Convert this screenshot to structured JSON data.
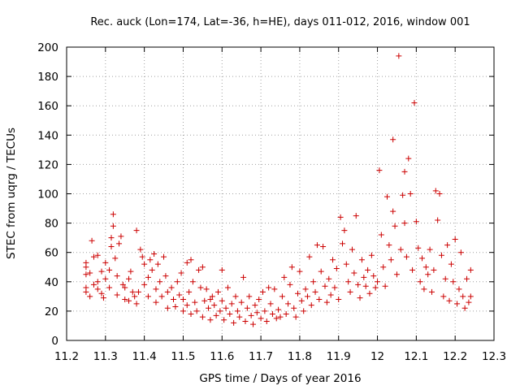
{
  "chart_data": {
    "type": "scatter",
    "title": "Rec. auck (Lon=174, Lat=-36, h=HE), days 011-012, 2016, window 001",
    "xlabel": "GPS time / Days of year 2016",
    "ylabel": "STEC from uqrg / TECUs",
    "xlim": [
      11.2,
      12.3
    ],
    "ylim": [
      0,
      200
    ],
    "xticks": [
      "11.2",
      "11.3",
      "11.4",
      "11.5",
      "11.6",
      "11.7",
      "11.8",
      "11.9",
      "12",
      "12.1",
      "12.2",
      "12.3"
    ],
    "yticks": [
      "0",
      "20",
      "40",
      "60",
      "80",
      "100",
      "120",
      "140",
      "160",
      "180",
      "200"
    ],
    "grid": true,
    "legend": "none",
    "marker": "+",
    "color": "#cc0000",
    "series": [
      {
        "points": [
          [
            11.25,
            33
          ],
          [
            11.25,
            36
          ],
          [
            11.25,
            45
          ],
          [
            11.25,
            50
          ],
          [
            11.25,
            53
          ],
          [
            11.26,
            30
          ],
          [
            11.26,
            46
          ],
          [
            11.265,
            68
          ],
          [
            11.27,
            57
          ],
          [
            11.27,
            38
          ],
          [
            11.28,
            35
          ],
          [
            11.28,
            40
          ],
          [
            11.28,
            58
          ],
          [
            11.29,
            32
          ],
          [
            11.29,
            47
          ],
          [
            11.295,
            29
          ],
          [
            11.3,
            53
          ],
          [
            11.3,
            42
          ],
          [
            11.31,
            36
          ],
          [
            11.31,
            48
          ],
          [
            11.315,
            64
          ],
          [
            11.315,
            70
          ],
          [
            11.32,
            78
          ],
          [
            11.32,
            86
          ],
          [
            11.325,
            56
          ],
          [
            11.33,
            31
          ],
          [
            11.33,
            44
          ],
          [
            11.335,
            66
          ],
          [
            11.34,
            71
          ],
          [
            11.345,
            38
          ],
          [
            11.35,
            28
          ],
          [
            11.35,
            36
          ],
          [
            11.36,
            27
          ],
          [
            11.36,
            42
          ],
          [
            11.365,
            47
          ],
          [
            11.37,
            33
          ],
          [
            11.375,
            30
          ],
          [
            11.38,
            75
          ],
          [
            11.38,
            25
          ],
          [
            11.385,
            33
          ],
          [
            11.39,
            62
          ],
          [
            11.395,
            57
          ],
          [
            11.4,
            52
          ],
          [
            11.4,
            38
          ],
          [
            11.41,
            30
          ],
          [
            11.41,
            43
          ],
          [
            11.415,
            55
          ],
          [
            11.42,
            48
          ],
          [
            11.425,
            59
          ],
          [
            11.43,
            35
          ],
          [
            11.43,
            26
          ],
          [
            11.435,
            52
          ],
          [
            11.44,
            40
          ],
          [
            11.445,
            30
          ],
          [
            11.45,
            57
          ],
          [
            11.455,
            44
          ],
          [
            11.46,
            22
          ],
          [
            11.46,
            33
          ],
          [
            11.47,
            36
          ],
          [
            11.475,
            28
          ],
          [
            11.48,
            23
          ],
          [
            11.485,
            40
          ],
          [
            11.49,
            31
          ],
          [
            11.495,
            46
          ],
          [
            11.5,
            20
          ],
          [
            11.5,
            28
          ],
          [
            11.51,
            53
          ],
          [
            11.51,
            24
          ],
          [
            11.515,
            33
          ],
          [
            11.52,
            55
          ],
          [
            11.52,
            18
          ],
          [
            11.525,
            40
          ],
          [
            11.53,
            26
          ],
          [
            11.535,
            20
          ],
          [
            11.54,
            48
          ],
          [
            11.545,
            36
          ],
          [
            11.55,
            50
          ],
          [
            11.55,
            16
          ],
          [
            11.555,
            27
          ],
          [
            11.56,
            35
          ],
          [
            11.565,
            22
          ],
          [
            11.57,
            28
          ],
          [
            11.57,
            14
          ],
          [
            11.575,
            30
          ],
          [
            11.58,
            24
          ],
          [
            11.585,
            17
          ],
          [
            11.59,
            33
          ],
          [
            11.595,
            20
          ],
          [
            11.6,
            27
          ],
          [
            11.6,
            48
          ],
          [
            11.605,
            14
          ],
          [
            11.61,
            22
          ],
          [
            11.615,
            36
          ],
          [
            11.62,
            18
          ],
          [
            11.625,
            25
          ],
          [
            11.63,
            12
          ],
          [
            11.635,
            30
          ],
          [
            11.64,
            20
          ],
          [
            11.645,
            16
          ],
          [
            11.65,
            26
          ],
          [
            11.655,
            43
          ],
          [
            11.66,
            13
          ],
          [
            11.665,
            22
          ],
          [
            11.67,
            30
          ],
          [
            11.675,
            17
          ],
          [
            11.68,
            11
          ],
          [
            11.685,
            24
          ],
          [
            11.69,
            19
          ],
          [
            11.695,
            28
          ],
          [
            11.7,
            15
          ],
          [
            11.705,
            33
          ],
          [
            11.71,
            20
          ],
          [
            11.715,
            13
          ],
          [
            11.72,
            36
          ],
          [
            11.725,
            25
          ],
          [
            11.73,
            18
          ],
          [
            11.735,
            35
          ],
          [
            11.74,
            15
          ],
          [
            11.745,
            21
          ],
          [
            11.75,
            16
          ],
          [
            11.755,
            30
          ],
          [
            11.76,
            43
          ],
          [
            11.765,
            18
          ],
          [
            11.77,
            25
          ],
          [
            11.775,
            38
          ],
          [
            11.78,
            50
          ],
          [
            11.785,
            22
          ],
          [
            11.79,
            16
          ],
          [
            11.795,
            32
          ],
          [
            11.8,
            47
          ],
          [
            11.805,
            27
          ],
          [
            11.81,
            20
          ],
          [
            11.815,
            35
          ],
          [
            11.82,
            30
          ],
          [
            11.825,
            57
          ],
          [
            11.83,
            24
          ],
          [
            11.835,
            40
          ],
          [
            11.84,
            33
          ],
          [
            11.845,
            65
          ],
          [
            11.85,
            28
          ],
          [
            11.855,
            47
          ],
          [
            11.86,
            64
          ],
          [
            11.865,
            37
          ],
          [
            11.87,
            26
          ],
          [
            11.875,
            42
          ],
          [
            11.88,
            31
          ],
          [
            11.885,
            55
          ],
          [
            11.89,
            36
          ],
          [
            11.895,
            49
          ],
          [
            11.9,
            28
          ],
          [
            11.905,
            84
          ],
          [
            11.91,
            66
          ],
          [
            11.915,
            75
          ],
          [
            11.92,
            52
          ],
          [
            11.925,
            40
          ],
          [
            11.93,
            33
          ],
          [
            11.935,
            62
          ],
          [
            11.94,
            46
          ],
          [
            11.945,
            85
          ],
          [
            11.95,
            38
          ],
          [
            11.955,
            29
          ],
          [
            11.96,
            55
          ],
          [
            11.965,
            43
          ],
          [
            11.97,
            37
          ],
          [
            11.975,
            48
          ],
          [
            11.98,
            32
          ],
          [
            11.985,
            58
          ],
          [
            11.99,
            44
          ],
          [
            11.995,
            36
          ],
          [
            12.0,
            40
          ],
          [
            12.005,
            116
          ],
          [
            12.01,
            72
          ],
          [
            12.015,
            50
          ],
          [
            12.02,
            37
          ],
          [
            12.025,
            98
          ],
          [
            12.03,
            65
          ],
          [
            12.035,
            55
          ],
          [
            12.04,
            137
          ],
          [
            12.04,
            88
          ],
          [
            12.045,
            78
          ],
          [
            12.05,
            45
          ],
          [
            12.055,
            194
          ],
          [
            12.06,
            62
          ],
          [
            12.065,
            99
          ],
          [
            12.07,
            115
          ],
          [
            12.07,
            80
          ],
          [
            12.075,
            57
          ],
          [
            12.08,
            124
          ],
          [
            12.085,
            100
          ],
          [
            12.09,
            48
          ],
          [
            12.095,
            162
          ],
          [
            12.1,
            81
          ],
          [
            12.105,
            63
          ],
          [
            12.11,
            40
          ],
          [
            12.115,
            56
          ],
          [
            12.12,
            35
          ],
          [
            12.125,
            50
          ],
          [
            12.13,
            45
          ],
          [
            12.135,
            62
          ],
          [
            12.14,
            33
          ],
          [
            12.145,
            48
          ],
          [
            12.15,
            102
          ],
          [
            12.155,
            82
          ],
          [
            12.16,
            100
          ],
          [
            12.165,
            58
          ],
          [
            12.17,
            30
          ],
          [
            12.175,
            42
          ],
          [
            12.18,
            65
          ],
          [
            12.185,
            27
          ],
          [
            12.19,
            52
          ],
          [
            12.195,
            40
          ],
          [
            12.2,
            69
          ],
          [
            12.205,
            25
          ],
          [
            12.21,
            35
          ],
          [
            12.215,
            60
          ],
          [
            12.22,
            30
          ],
          [
            12.225,
            22
          ],
          [
            12.23,
            42
          ],
          [
            12.235,
            26
          ],
          [
            12.24,
            48
          ],
          [
            12.24,
            30
          ]
        ]
      }
    ]
  }
}
